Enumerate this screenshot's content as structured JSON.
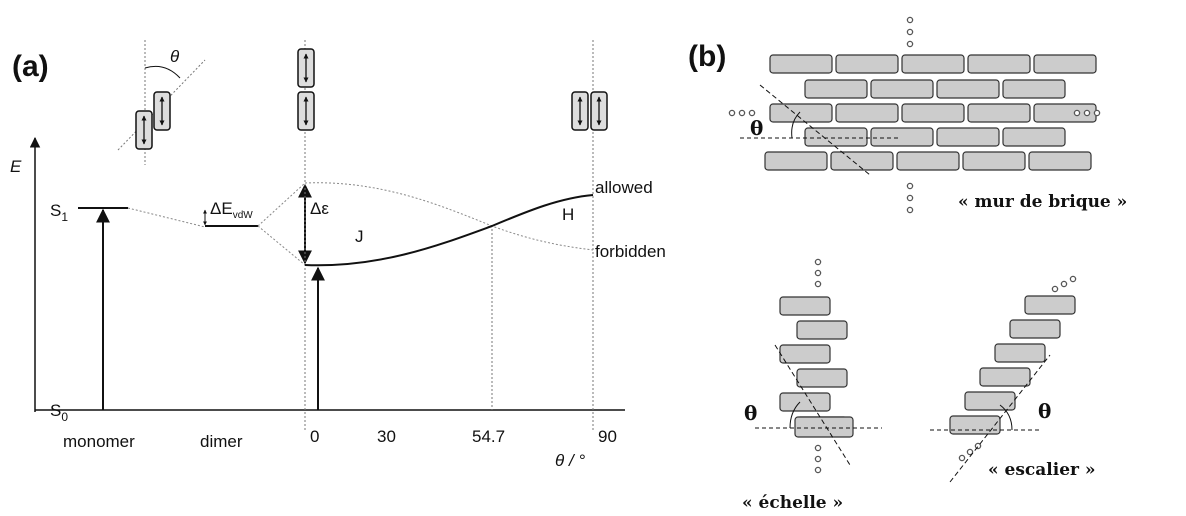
{
  "panel_a": {
    "label": "(a)",
    "angle_symbol": "θ",
    "energy_axis": "E",
    "s1": {
      "main": "S",
      "sub": "1"
    },
    "s0": {
      "main": "S",
      "sub": "0"
    },
    "vdw": {
      "main": "ΔE",
      "sub": "vdW"
    },
    "splitting": "Δε",
    "j_band": "J",
    "h_band": "H",
    "allowed": "allowed",
    "forbidden": "forbidden",
    "monomer": "monomer",
    "dimer": "dimer",
    "ticks": [
      "0",
      "30",
      "54.7",
      "90"
    ],
    "x_axis_label": "θ / °"
  },
  "panel_b": {
    "label": "(b)",
    "brick_wall": {
      "angle": "θ",
      "caption": "« mur de brique »"
    },
    "ladder": {
      "angle": "θ",
      "caption": "« échelle »"
    },
    "staircase": {
      "angle": "θ",
      "caption": "« escalier »"
    }
  }
}
